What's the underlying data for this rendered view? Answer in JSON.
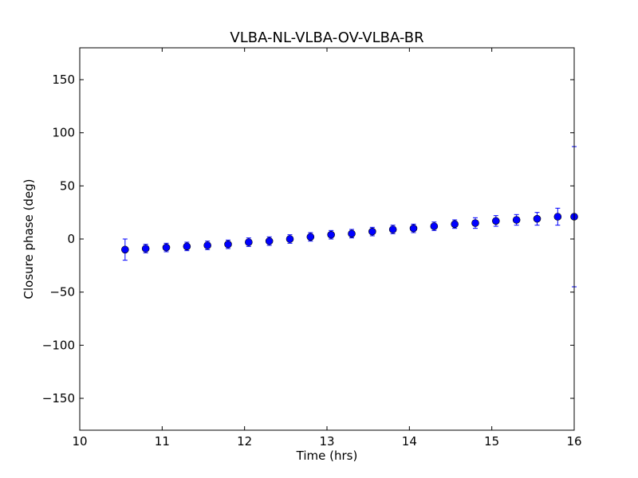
{
  "chart_data": {
    "type": "scatter",
    "title": "VLBA-NL-VLBA-OV-VLBA-BR",
    "xlabel": "Time (hrs)",
    "ylabel": "Closure phase (deg)",
    "xlim": [
      10,
      16
    ],
    "ylim": [
      -180,
      180
    ],
    "xticks": [
      10,
      11,
      12,
      13,
      14,
      15,
      16
    ],
    "xtick_labels": [
      "10",
      "11",
      "12",
      "13",
      "14",
      "15",
      "16"
    ],
    "yticks": [
      -150,
      -100,
      -50,
      0,
      50,
      100,
      150
    ],
    "ytick_labels": [
      "−150",
      "−100",
      "−50",
      "0",
      "50",
      "100",
      "150"
    ],
    "grid": false,
    "marker_color": "#0000ff",
    "errorbar_color": "#0000ff",
    "series": [
      {
        "x": [
          10.55,
          10.8,
          11.05,
          11.3,
          11.55,
          11.8,
          12.05,
          12.3,
          12.55,
          12.8,
          13.05,
          13.3,
          13.55,
          13.8,
          14.05,
          14.3,
          14.55,
          14.8,
          15.05,
          15.3,
          15.55,
          15.8,
          16.0
        ],
        "y": [
          -10,
          -9,
          -8,
          -7,
          -6,
          -5,
          -3,
          -2,
          0,
          2,
          4,
          5,
          7,
          9,
          10,
          12,
          14,
          15,
          17,
          18,
          19,
          21,
          21
        ],
        "yerr": [
          10,
          4,
          4,
          4,
          4,
          4,
          4,
          4,
          4,
          4,
          4,
          4,
          4,
          4,
          4,
          4,
          4,
          5,
          5,
          5,
          6,
          8,
          66
        ]
      }
    ]
  }
}
